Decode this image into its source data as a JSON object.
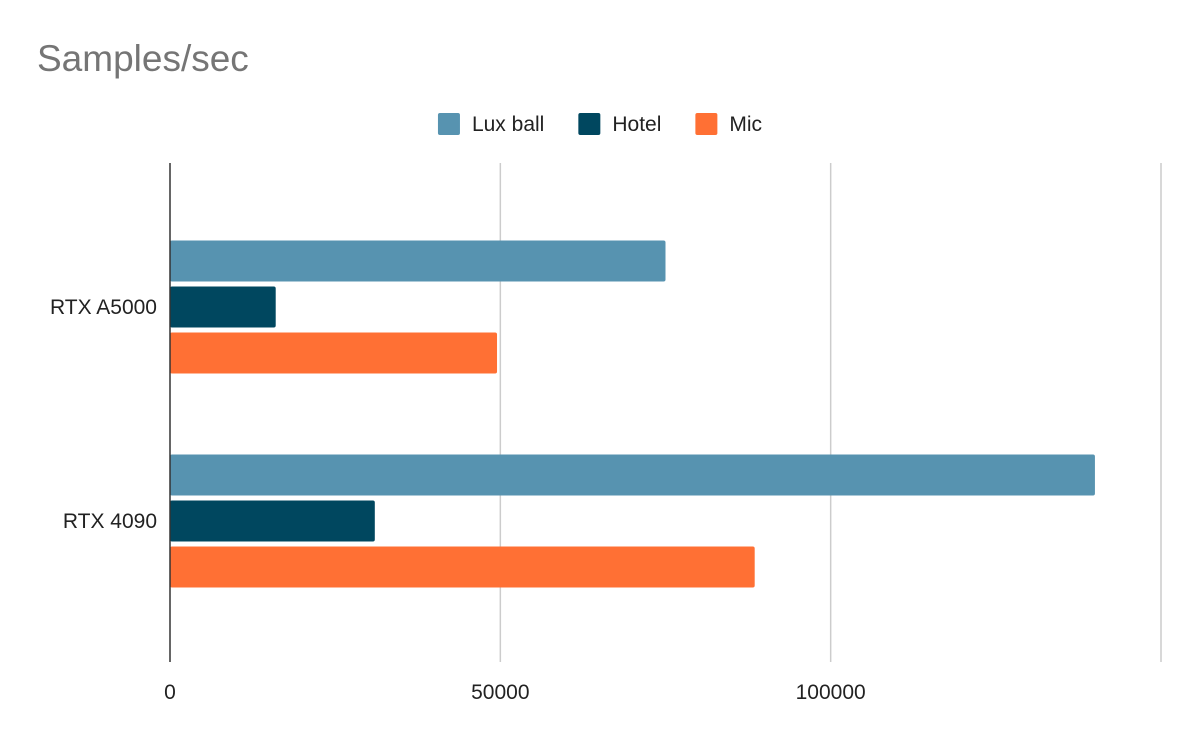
{
  "chart_data": {
    "type": "bar",
    "orientation": "horizontal",
    "title": "Samples/sec",
    "xlabel": "",
    "ylabel": "",
    "categories": [
      "RTX A5000",
      "RTX 4090"
    ],
    "series": [
      {
        "name": "Lux ball",
        "color": "#5793b0",
        "values": [
          75000,
          140000
        ]
      },
      {
        "name": "Hotel",
        "color": "#00475f",
        "values": [
          16000,
          31000
        ]
      },
      {
        "name": "Mic",
        "color": "#ff7034",
        "values": [
          49500,
          88500
        ]
      }
    ],
    "xlim": [
      0,
      150000
    ],
    "xticks": [
      0,
      50000,
      100000
    ],
    "xtick_labels": [
      "0",
      "50000",
      "100000"
    ],
    "grid": "vertical",
    "legend_position": "top-center"
  }
}
